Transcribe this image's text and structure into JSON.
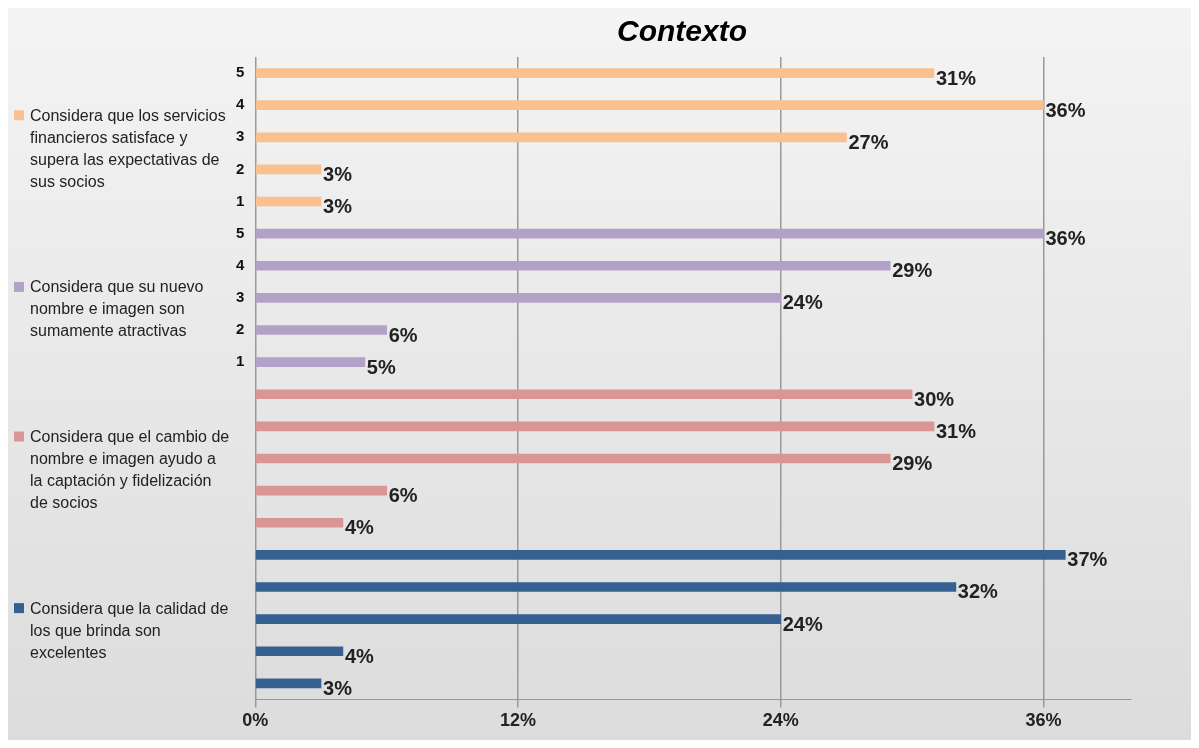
{
  "chart_data": {
    "type": "bar",
    "title": "Contexto",
    "orientation": "horizontal",
    "categories": [
      "5",
      "4",
      "3",
      "2",
      "1",
      "5",
      "4",
      "3",
      "2",
      "1",
      null,
      null,
      null,
      null,
      null,
      null,
      null,
      null,
      null,
      null
    ],
    "series": [
      {
        "name": "Considera que los servicios financieros satisface y supera las expectativas de sus socios",
        "color": "#fac090",
        "values": [
          31,
          36,
          27,
          3,
          3,
          null,
          null,
          null,
          null,
          null,
          null,
          null,
          null,
          null,
          null,
          null,
          null,
          null,
          null,
          null
        ],
        "value_labels": [
          "31%",
          "36%",
          "27%",
          "3%",
          "3%",
          null,
          null,
          null,
          null,
          null,
          null,
          null,
          null,
          null,
          null,
          null,
          null,
          null,
          null,
          null
        ]
      },
      {
        "name": "Considera que su nuevo nombre e imagen son sumamente atractivas",
        "color": "#b3a2c7",
        "values": [
          null,
          null,
          null,
          null,
          null,
          36,
          29,
          24,
          6,
          5,
          null,
          null,
          null,
          null,
          null,
          null,
          null,
          null,
          null,
          null
        ],
        "value_labels": [
          null,
          null,
          null,
          null,
          null,
          "36%",
          "29%",
          "24%",
          "6%",
          "5%",
          null,
          null,
          null,
          null,
          null,
          null,
          null,
          null,
          null,
          null
        ]
      },
      {
        "name": "Considera que el cambio de nombre e imagen ayudo a la captación y fidelización de socios",
        "color": "#d99694",
        "values": [
          null,
          null,
          null,
          null,
          null,
          null,
          null,
          null,
          null,
          null,
          30,
          31,
          29,
          6,
          4,
          null,
          null,
          null,
          null,
          null
        ],
        "value_labels": [
          null,
          null,
          null,
          null,
          null,
          null,
          null,
          null,
          null,
          null,
          "30%",
          "31%",
          "29%",
          "6%",
          "4%",
          null,
          null,
          null,
          null,
          null
        ]
      },
      {
        "name": "Considera que la calidad de los que brinda son excelentes",
        "color": "#376092",
        "values": [
          null,
          null,
          null,
          null,
          null,
          null,
          null,
          null,
          null,
          null,
          null,
          null,
          null,
          null,
          null,
          37,
          32,
          24,
          4,
          3
        ],
        "value_labels": [
          null,
          null,
          null,
          null,
          null,
          null,
          null,
          null,
          null,
          null,
          null,
          null,
          null,
          null,
          null,
          "37%",
          "32%",
          "24%",
          "4%",
          "3%"
        ]
      }
    ],
    "xlim": [
      0,
      40
    ],
    "xticks": [
      {
        "value": 0,
        "label": "0%"
      },
      {
        "value": 12,
        "label": "12%"
      },
      {
        "value": 24,
        "label": "24%"
      },
      {
        "value": 36,
        "label": "36%"
      }
    ],
    "grid": "x",
    "legend": "left"
  }
}
